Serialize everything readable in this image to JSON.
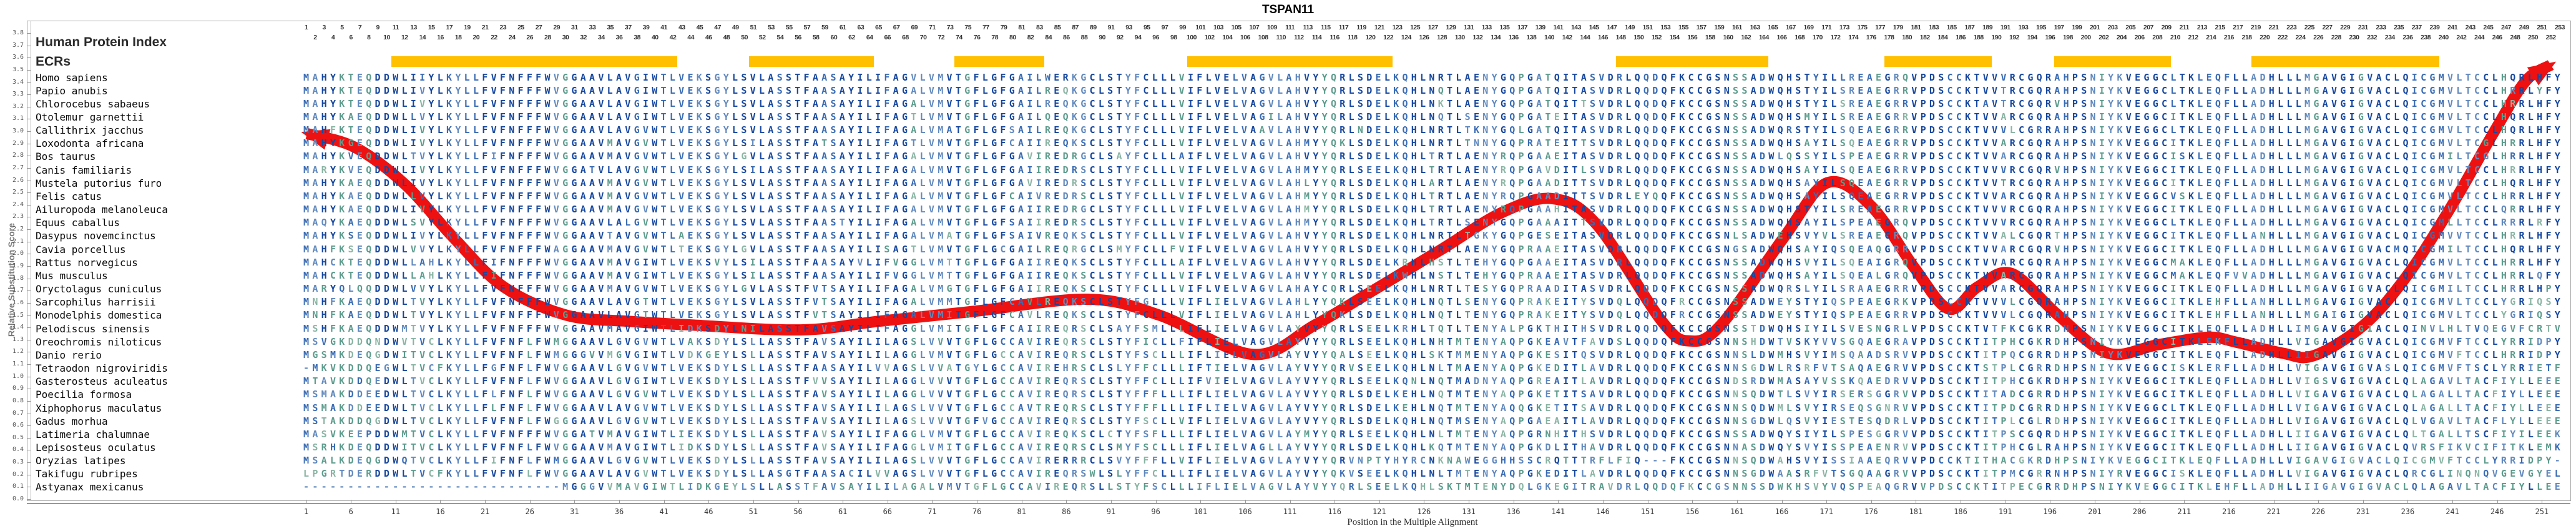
{
  "title": "TSPAN11",
  "header": {
    "protein_index_label": "Human Protein Index",
    "ecrs_label": "ECRs"
  },
  "colors": {
    "ecr_bar": "#FFC000",
    "curve": "#EE1111",
    "residue_navy": "#17489E",
    "residue_medium": "#3A6CB3",
    "residue_steel": "#6189BD",
    "residue_pale": "#8FA9CF",
    "residue_teal": "#5D9C8D",
    "residue_paleteal": "#8AB4A4",
    "frame": "#A9A9A9"
  },
  "y_axis": {
    "label": "Relative Substitution Score",
    "min": 0.0,
    "max": 3.8,
    "step": 0.1
  },
  "x_axis": {
    "label": "Position in the Multiple Alignment",
    "tick_start": 1,
    "tick_step": 5,
    "tick_end": 251
  },
  "alignment": {
    "length": 253,
    "ecr_bars": [
      {
        "start_col": 11,
        "end_col": 42
      },
      {
        "start_col": 51,
        "end_col": 64
      },
      {
        "start_col": 74,
        "end_col": 83
      },
      {
        "start_col": 100,
        "end_col": 122
      },
      {
        "start_col": 148,
        "end_col": 164
      },
      {
        "start_col": 178,
        "end_col": 189
      },
      {
        "start_col": 197,
        "end_col": 209
      },
      {
        "start_col": 219,
        "end_col": 239
      }
    ],
    "species": [
      "Homo sapiens",
      "Papio anubis",
      "Chlorocebus sabaeus",
      "Otolemur garnettii",
      "Callithrix jacchus",
      "Loxodonta africana",
      "Bos taurus",
      "Canis familiaris",
      "Mustela putorius furo",
      "Felis catus",
      "Ailuropoda melanoleuca",
      "Equus caballus",
      "Dasypus novemcinctus",
      "Cavia porcellus",
      "Rattus norvegicus",
      "Mus musculus",
      "Oryctolagus cuniculus",
      "Sarcophilus harrisii",
      "Monodelphis domestica",
      "Pelodiscus sinensis",
      "Oreochromis niloticus",
      "Danio rerio",
      "Tetraodon nigroviridis",
      "Gasterosteus aculeatus",
      "Poecilia formosa",
      "Xiphophorus maculatus",
      "Gadus morhua",
      "Latimeria chalumnae",
      "Lepisosteus oculatus",
      "Oryzias latipes",
      "Takifugu rubripes",
      "Astyanax mexicanus"
    ],
    "sequences": [
      "MAHYKTEQDDWLIIYLKYLLFVFNFFFWVGGAAVLAVGIWTLVEKSGYLSVLASSTFAASAYILIFAGVLVMVTGFLGFGAILWERKGCLSTYFCLLLVIFLVELVAGVLAHVYYQRLSDELKQHLNRTLAENYGQPGATQITASVDRLQQDQFKCCGSNSSADWQHSTYILLREAEGRQVPDSCCKTVVVRCGQRAHPSNIYKVEGGCLTKLEQFLLADHLLLMGAVGIGVACLQICGMVLTCCLHQRLHFY",
      "MAHYKTEQDDWLIVYLKYLLFVFNFFFWVGGAAVLAVGIWTLVEKSGYLSVLASSTFAASAYILIFAGALVMVTGFLGFGAILREQKGCLSTYFCLLLVIFLVELVAGVLAHVYYQRLSDELKQHLNQTLAENYGQPGATQITASVDRLQQDQFKCCGSNSSADWQHSTYILSREAEGRRVPDSCCKTVVTRCGQRAHPSNIYKVEGGCLTKLEQFLLADHLLLMGAVGIGVACLQICGMVLTCCLHRRLYFY",
      "MAHYKTEQDDWLIVYLKYLLFVFNFFFWVGGAAVLAVGIWTLVEKSGYLSVLASSTFAASAYILIFAGALVMVTGFLGFGAILREQKGCLSTYFCLLLVIFLVELVAGVLAHVYYQRLSDELKQHLNKTLAENYGQPGATQITTSVDRLQQDQFKCCGSNSSADWQHSTYILSREAEGRRVPDSCCKTAVTRCGQRVHPSNIYKVEGGCLTKLEQFLLADHLLLMGAVGIGVACLQICGMVLTCCLHRRLHFY",
      "MAHYKAEQDDWLLVYLKYLLFVFNFFFWVGGAAVLAVGIWTLVEKSGYLSVLASSTFAASAYILIFAGTLVMVTGFLGFGAILQEQKGCLSTYFCLLLVIFLVELVAGILAHVYYQRLSDELKQHLNQTLSENYGQPGATEITASVDRLQQDQFKCCGSNSSADWQHSMYILSREAEGRRVPDSCCKTVVARCGQRAHPSNIYKVEGGCITKLEQFLLADHLLLMGAVGIGVACLQICGMVLTCCLHQRLHFY",
      "MAHFKTEQDDWLIVYLKYLLFVFNFFFWVGGAAVLAVGVWTLVEKSGYLSVLASSTFAASAYILIFAGALVMATGFLGFSAILREQKGCLSTYFCLLLVIFLVELVAAVLAHVYYQRLNDELKQHLNRTLTKNYGQLGATQITASVDRLQQDQFKCCGSNSSADWQRSTYILSQEAEGRRVPDSCCKTVVVLCGRRAHPSNIYKVEGGCLTKLEQFLLADHLLLMGAVGIGVACLQICGMVLTCCLHQRLHFY",
      "MAHYKGEQDDWLIVYLKYLLFVFNFFFWVGGAAVMAVGVWTLVEKSGYLSILASSTFATSAYILIFAGTLVMVTGFLGFCAIIREQKSCLSTYFCLLLVIFLVELVAGVLAHMYYQKLSDELKQHLNRTLTNNYGQPRATEITTSVDRLQQDQFKCCGSNSSADWQHSAYILSQEAEGRRVPDSCCKTVVARCGQRAHPSNIYKVEGGCITKLEQFLLADHLLLMGAVGIGVACLQICGMVLTCGLHRRLHFY",
      "MAHYKVEQDDWLTVYLKYLLFIFNFFFWVGGAAVMAVGVWTLVEKSGYLGVLASSTFAASAYILIFAGALVMVTGFLGFGAVIREDRGCLSAYFCLLLAIFLVELVAGVLAHVYYQRLSDELKQHLTRTLAENYRQPGAAEITASVDRLQQDQFKCCGSNSSADWLQSSYILSPEAEGRRVPDSCCKTVVARCGQRAHPSNIYKVEGGCISKLEQFLLADHLLLMGAVGIGVACLQICGMILTCGLHRRLHFY",
      "MARYKVEQDDWLIVYLKYLLFVFNFFFWVGGATVLAVGVWTLVEKSGYLSILASSTFAASAYILIFAGALVMVTGFLGFGAIIREDRSCLSTYFCLLLVIFLVELVAGVLAHMYYQRLSEELKQHLTRTLAENYRQPGAVDITLSVDRLQQDQFKCCGSNSSADWQHSAYILSQEAEGRRVPDSCCKTVVVRCGQRVHPSNIYKVEGGCITKLEQFLLADHLLLMGAVGIGVACLQICGMVLTCCLHRRLHFY",
      "MAHYKAEQDDWLIVYLKYLLFVFNFFFWVGGAAVMAVGVWTLVEKSGYLSVLASSTFAASAYILIFAGALVMVTGFLGFGAVIREDRSCLSTYFCLLLVIFLVELVAGVLAHLYYQRLSDELKQHLARTLAENYRQPGAADITTSVDRLQQDQFKCCGSNSSADWQHSAYILSQEAEGRRVPDSCCKTVVTRCGQRAHPSNIYKVEGGCITKLEQFLLADHLLLMGAVGIGVACLQICGMVLTCCLHQRLHFY",
      "MAHYKAEQDDWLLVYLKYLLFVFNFFFWVGGAAVMAVGVWTLVEKSGYLSVLASSTFAASAYILIFAGALVMVTGFLGFCAIVREDRSCLSTYFCLLLVIFLVELVAGVLAHMYYQRLSDELKQHLTRTLAENYRQPGAADITTSVDRLEYQQFKCCGSNSSADWQHSAYILSQEAEGRRVPDSCCKTVVARCGQRAHPSNIYKVEGGCVSKLEQFLLADHLLLMGAVGIGVACLQICGMVLTCCLHRRLHFY",
      "MAHYKAEQDDWLIVYLKYLLFVFNFFFWVGGAAVMAVGVWTLVEKSGYLSVLASSTFAASAYILIFAGALVMVTGFLGFGAIIREDRGCLSTYFCLLLVIFLVELVAGVLAHMYYQRLSDELKQHLTRTLAENYRQPGAAHITASVDRLQQDQFKCCGSNSSADWQHSTYILSREAEGRRVPDSCCKTVVVRCGQRAHPSNIYKVEGGCITKLEQFLLADHLLLMGAVGIGVACLQICGMVLTCCLQRRLHFY",
      "MAQYKAEQDDWLSVYLKYLLFVFNFFFWVGGAAVLALGVWTLVEKSGYLSVLASSTFAASTYILIFAGALVMVTGFLGFSAIIREDRSCLSTYFCLLLVIFLVELVAGVLAHMYYQRLSDELKQHLTRTLSENYGQPGAAAITTSVDRLQQDQFKCCGSNSSADWQHSAYILSPEAEGRQVPDSCCKTVVVRCGQRAHPSNIYKVEGGCLTKLEQFLLADHLLLMGAVGIGVACLQICGMLLTCCLRRRLRFY",
      "MAHYKSEQDDWLIVYLKYLLFVFNFFFWVGGAAVTAVGVWTLAEKSGYLSVLASSTFAASAYILIFAGALVMATGFLGFSAIVREQKSCLSTYFCLLLVIFLVELVAGVLAHVYYQRLSDELKQHLNRTLTGKYGQPGESEITASVDRLQQDQFKCCGSNLSADWEHSVYVLSREAEGRQVPDSCCKTVVALCGQRTHPSNIYKVEGGCITKLEQFLLANHLLLMGAVGIGVACLQICGMVVTCCLHRRLHFY",
      "MAHFKSEQDDWLVVYLKYLLFVFNFFFWAGGAAVMAVGVWTLTEKSGYLGVLASSTFAASAYILISAGTLVMVTGFLGCGAILREQRGCLSMYFCLLFVIFLVELVAGVLAHVYYQRLSDELKQHLNRTLAENYGQPRAAEITASVDRLQQDQFKCCGSNGSADWQHSAYIQSQEAQGRRVPDSCCKTVVARCGQRVHPSNIYKVEGGCITKLEQFLLADHLLLMGAVGIGVACMQICGMILTCCLHQRLHFY",
      "MAHCKTEQDDWLLAHLKYLLFIFNFFFWVGGAAVMAVGIWTLVEKSVYLSILASSTFAASAYVLIFVGGLVMTTGFLGFGAIIREQKSCLSTYFCLLLAIFLVELVAGVLAHVYYQRLSDELKRHLHSTLTEHYGQPGAAEITASVDRLQQDQFKCCGSNSSADWQHSVYILSQEAIGRQVPDSCCKTVVARCGQRAHPSNIYKVEGGCMAKLEQFLLADHLLLMGAVGIGVACLQICGMVLTCCLHRRLHFY",
      "MAHCKTEQDDWLLAHLKYLLFIFNFFFWVGGAAVMAVGIWTLVEKSGYLSILASSTFAASAYILIFVGGLVMTTGFLGFGAIIREQKSCLSTYFCLLLVIFLVELVAGVLAHVYYQRLSDELKWHLNSTLTEHYGQPRAAEITASVDRLQQDQFKCCGSNSSADWQHSAYILSQEALGRQVPDSCCKTVVARCGQRAHPSNIYKVEGGCMAKLEQFVVADHLLLMGAVGIGVACLQICGMVLTCCLHRRLQFY",
      "MARYQLQQDDWLVVYLKYLLFVFNFFFWVGGAAVMAVGVWTLVEKSGYLGVLASSTFVTSAYILIFAGALVMGTGFLGFGAIIREQKSCLSTYFCLLLVIFLVELVAGVLAHAYCQRLSEELKQHLNRTLTESYGQPRAADITASVDRLQQDQFKCCGSNSSADWQRSLYILSRAAEGRRVPDSCCKTVVARCGQRAHPSNIYKVEGGCITKLEQFLLADHLLLMGAVGIGVACLQICGMILTCCLHRRLHPY",
      "MNHFKAEQDDWLTVYLKYLLFVFNFFFWVGGAAVLAVGTWTLVEKSGYLSVLASSTFVTSAYILIFAGALVMMTGFLGFCAVLREQKSCLSTYFGLLLVIFLIELVAGVLAHLYYQKLSEELKQHLNQTLSENYGQPRAKEITYSVDQLQQDQFRCCGSNSSADWEYSTYIQSPEAEGRKVPDSCCKTVVVLCGQRAHPSNIYKVEGGCITKLEHFLLANHLLLMGAVGIGVACLQICGMVLTCCLYGRIQSY",
      "MNHFKAEQDDWLTVYLKYLLFVFNFFFWVGGAAVLAVGTWTLVEKSGYLSVLASSTFVTSAYILIFAGALVMITGFLGFCAVLREQKSCLSTYFCLLLVIFLIELVAGVLAHLYYQKLSDELKQHLNQTLTENYGQPRAKEITYSVDQLQQDQFRCCGSNSSADWEYSTYIQSPEAEGRRVPDSCCKTVVVLCGQRAHPSNIYKVEGGCITKLEHFLLANHLLLMGAIGIGVACLQICGMVLTCCLYGRIQSY",
      "MSHFKAEQDDWMTVYLKYLLFVFNFFFWVGGAAVMAVGIWTLIDKSDYLNILASSTFAVSAYILIFAGGLVMITGFLGFCAIIREQRSCLSAYFSMLLLIFLIELVAGVLAYVYYQRLSEELKRHLTQTLTENYALPGKTHITHSVDRLQQDQFKCCGSNSSTDWQHSIYILSVESNGRLVPDSCCKTVTFKCGKRDHPSNIYKVEGGCITKLEQFLLADHLLIMGAVGIGIACLQINVLHLTVQEGVFCRTV",
      "MSVGKDDQNDWVTVCLKYLLFVFNFLFWMGGAAVLGVGVWTLVAKSDYLSLLASSTFAVSAYILILAGSLVVVTGFLGCCAVIREQRSCLSTYFICLLFIFLIELVAGVLAYVYYQRLSEELKQHLNHTMTENYAQPGKEAVTFAVDSLQQDQFKCCGSNNSHDWTVSKYVVSGQAEGRAVPDSCCKTITPHCGKRDHPSNIYKVEGGCITKLEKFLLADHLLVIGAVGIGVACLQICGMVFTCCLYRRIDPY",
      "MGSMKDEQGDWITVCLKYLLFVFNFLFWMGGGVVMGVGIWTLVDKGEYLSLLASSTFAVSAYILILAGGLVMVTGFLGCCAVIREQRSCLSTYFSCLLLIFLIELVAGVLAYVYYQALSEELKQHLSKTMMENYAQPGKESITQSVDRLQQDQFKCCGSNNSLDWMHSVYIMSQAADSRVVPDSCCKTITPQCGRRDHPSNIYKVEGGCITKLEQFLLADHLLIIGAVGIGVACLQICGMVFTCCLHRRIDPY",
      "-MKVKDDQEGWLTVCFKYLLFGFNFLFWVGGAAVLGVGVWTLVEKSDYLSLLASSTFAASAYILVVAGSLVVATGYLGCCAVIREHRSCLSLYFFCLLLIFTIELVAGVLAYVYYQRVSEELKQHLNLTMAENYAQPGKEDITLAVDRLQQDQFKCCGSNNSGDWLRSRFVTSAQAEGRVVPDSCCKTSTPLCGRRDHPSNIYKVEGGCISKLERFLLADHLLVIGAVGIGVASLQICGMVFTSCLYRRIETF",
      "MTAVKDDQEDWLTVCLKYLLFVFNFLFWVGGAAVLGVGIWTLVEKSDYLSLLASSTFVVSAYILILAGGLVVVTGFLGCCAVIREQRSCLSTYFFCLLLIFVIELVAGVLAYVYYQRLSEELKQNLNQTMADNYAQPGREAITLAVDRLQQDQFKCCGSNDSRDWMASAYVSSKQAEDRVVPDSCCKTITPHCGKRDHPSNIYKVEGGCITKLEQFLLADHLLVIGSVGIGVACLQLAGAVLTACFIYLLEEE",
      "MSMAKDDEEDWLTVCLKYLLFLFNFLFWVGGAAVLGVGVWTLVEKSDYLSLLASSTFAVSAYILILAGGLVVVTGFLGCCAVIREQRSCLSTYFFFLLLIFLIELVAGVLAYVYYQRLSDELKEHLNQTMTENYAQPGKETITSAVDRLQQDQFKCCGSNNSQDWTLSVYIRSERSGGRVVPDSCCKTITADCGRRDHPSNIYKVEGGCITKLEQFLLADHLLVIGAVGIGVACLQLAGALLTACFIYLLEEE",
      "MSMAKDDEEDWLTVCLKYLLFLFNFLFWVGGAAVLAVGVWTLVEKSDYLSLLASSTFAVSAYILILAGSLVVVTGFLGCCAVTREQRSCLSTYFFFLLLIFLIELVAGVLAYVYYQRLSDELKEHLNQTMTENYAQQGKETITSAVDRLQQDQFKCCGSNNSQDWMLSVYIRSEQSGNRVVPDSCCKTITPDCGRRDHPSNIYKVEGGCLTKLEQFLLADHLLVIGAVGIGVACLQLAGALLTACFIYLLEEE",
      "MSTAKDDQGDWLTVCLKYLLFVFNFLFWGGGAAVLGVGVWTLVEKSDYLSLLASSTFAVSAYILILAGSLVVVTGFVGCCAVIREQRSCLSTYFSCLLVIFLIELVAGVLAYVYYQRLSDELKQHLNQTMSENYAQPGAEAITLAVDRLQQDQFKCCGSNNSGDWLQSVYIESTESQDRLVPDSCCKTITPLCGLRDHPSNIYKVEGGCITKLEQFLLADHLLVIGAVGIGVACLQLVGAVLTACFLYLLEEE",
      "MASVKEEPDDWMTVCLKYLLFVFNFFFWVGGATVMAVGIWTLIEKSDYLSLLASSTFAVSAYILIFAGGLVMVTGFLGCCAVIREQKSCLCTYFSFLLLIFLIELVAGVLAYMYYQRLSEELKQHLNLTMTENYAQPGRNHITHSVDRLQQDQFKCCGSNSSADWQYSIYILSPESGGRVVPDSCCKTITPSCGQRDHPSNIYKVEGGCITKLEQFLLADHLLIIGAVGIGVACLQLTGALLTSCFIYILEEK",
      "MSRHKDEQDDWITVCLKYLLFVFNFLFWVGGAAVMAVGIWTLIDKSDYLSLLASSTFAVSAYILIFAGGLVMITGFLGCCAVIREQRSCLSMYFSCLLLIFLIELVAGLLAYVYYQRLSDELKQHLKQTMTENYAQPGKDLITHAVDRLQQDQFKCCGSNNASDWQYSVYISSPEAENRVVPDSCCKTITPHCGLRAHPSNIYKVEGGCITKLEQFLLADHLLIIGAVGIGVACLQVRSFIKVCIFITKLEMK",
      "MSALKDEQGDWQTVCLKYLLFIFNFLFWMGGAAVLGVGVWTLVEKSDYLSLLASSTFAVSAYILILAGSLVVVTGFLGCCAVIRERRRCLSVYFFFLLVIFLIELVAGVLAYVYYQRVNPTYHYRCNKNAWEGGHHSSCRQTTTRFLFIQ---FKCCGSNNSQDWAHSVYISSIAAEQRVVPDCCKTITHACGKRDHPSNIYKVEGGCITKLEQFLLADHLLVIGAVGIGVACLQICGMVFTCCLYRRIDPY-",
      "LPGRTDERDDWLTVCFKYLLFVFNFLFWVGGAAVLAVGVWTLVEKSDYLSLLASGTFAASACILVVAGSLVVVTGFLGCCAVIREQRSWLSLYFFCLLLIFLIELVAGVLAYVYYQKVSEELKQHLNLTMTENYAQPGKEDITLAVDRLQQDQFKCCGSNNSGDWAASRFVTSGQAAGRVVPDSCCKTITPMCGRRNHPSNIYRVEGGCISKLEQFLLADHLLVIGAVGIGVACLQRCGLINQNQVGEVGYEL",
      "-----------------------------MGGGVVMAVGIWTLIDKGEYLSLLASSTFAVSAYILILAGALVMVTGFLGCCAVIREQRSLLSTYFSCLLLIFLIELVAGVLAYVYYQRLSEELKQHLSKTMTENYDQLGKEGITRAVDRLQQDQFKCCGSNNSSDWKHSVYVQSPEAQGRVVPDSCCKTITPECGRRDHPSNIYKVEGGCITKLEHFLLADHLLIIGAVGIGVACLQLAGAVLTACFIYLLEE"
    ]
  },
  "chart_data": {
    "type": "line",
    "title": "TSPAN11",
    "xlabel": "Position in the Multiple Alignment",
    "ylabel": "Relative Substitution Score",
    "xlim": [
      1,
      253
    ],
    "ylim": [
      0.0,
      3.8
    ],
    "grid": false,
    "series": [
      {
        "name": "relative-substitution-score",
        "points": [
          [
            1.1,
            2.98
          ],
          [
            6.4,
            2.87
          ],
          [
            12,
            2.57
          ],
          [
            17.5,
            2.13
          ],
          [
            23.1,
            1.73
          ],
          [
            30.1,
            1.5
          ],
          [
            37.1,
            1.45
          ],
          [
            44.1,
            1.42
          ],
          [
            56.3,
            1.38
          ],
          [
            65,
            1.45
          ],
          [
            75.5,
            1.53
          ],
          [
            88.4,
            1.63
          ],
          [
            96.4,
            1.5
          ],
          [
            106.9,
            1.18
          ],
          [
            113.8,
            1.42
          ],
          [
            120.5,
            1.71
          ],
          [
            127.8,
            2.03
          ],
          [
            134.8,
            2.34
          ],
          [
            140.4,
            2.45
          ],
          [
            145.3,
            2.24
          ],
          [
            152.6,
            1.45
          ],
          [
            155.7,
            1.29
          ],
          [
            159.2,
            1.42
          ],
          [
            166.2,
            2.13
          ],
          [
            171.1,
            2.58
          ],
          [
            176,
            2.39
          ],
          [
            180.9,
            1.88
          ],
          [
            184.7,
            1.55
          ],
          [
            187.9,
            1.73
          ],
          [
            191.7,
            1.84
          ],
          [
            196.9,
            1.5
          ],
          [
            202.5,
            1.19
          ],
          [
            208.1,
            1.26
          ],
          [
            213.7,
            1.32
          ],
          [
            216.8,
            1.28
          ],
          [
            222,
            1.19
          ],
          [
            225.5,
            1.17
          ],
          [
            231.1,
            1.42
          ],
          [
            236,
            1.83
          ],
          [
            240.9,
            2.39
          ],
          [
            245.7,
            3.0
          ],
          [
            249.2,
            3.41
          ],
          [
            252,
            3.54
          ]
        ]
      }
    ]
  }
}
